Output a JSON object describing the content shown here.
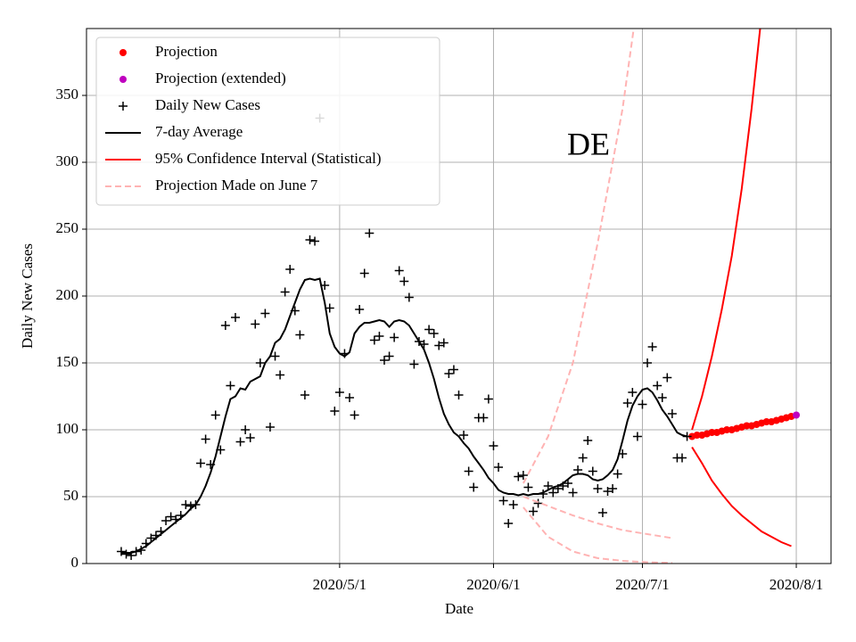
{
  "chart_data": {
    "type": "line",
    "annotation": "DE",
    "xlabel": "Date",
    "ylabel": "Daily New Cases",
    "xlim": [
      "2020-03-11",
      "2020-08-08"
    ],
    "xticks": [
      {
        "value": "2020-05-01",
        "label": "2020/5/1"
      },
      {
        "value": "2020-06-01",
        "label": "2020/6/1"
      },
      {
        "value": "2020-07-01",
        "label": "2020/7/1"
      },
      {
        "value": "2020-08-01",
        "label": "2020/8/1"
      }
    ],
    "ylim": [
      0,
      400
    ],
    "yticks": [
      0,
      50,
      100,
      150,
      200,
      250,
      300,
      350
    ],
    "grid": true,
    "legend": "upper left",
    "x": [
      "2020-03-18",
      "2020-03-19",
      "2020-03-20",
      "2020-03-21",
      "2020-03-22",
      "2020-03-23",
      "2020-03-24",
      "2020-03-25",
      "2020-03-26",
      "2020-03-27",
      "2020-03-28",
      "2020-03-29",
      "2020-03-30",
      "2020-03-31",
      "2020-04-01",
      "2020-04-02",
      "2020-04-03",
      "2020-04-04",
      "2020-04-05",
      "2020-04-06",
      "2020-04-07",
      "2020-04-08",
      "2020-04-09",
      "2020-04-10",
      "2020-04-11",
      "2020-04-12",
      "2020-04-13",
      "2020-04-14",
      "2020-04-15",
      "2020-04-16",
      "2020-04-17",
      "2020-04-18",
      "2020-04-19",
      "2020-04-20",
      "2020-04-21",
      "2020-04-22",
      "2020-04-23",
      "2020-04-24",
      "2020-04-25",
      "2020-04-26",
      "2020-04-27",
      "2020-04-28",
      "2020-04-29",
      "2020-04-30",
      "2020-05-01",
      "2020-05-02",
      "2020-05-03",
      "2020-05-04",
      "2020-05-05",
      "2020-05-06",
      "2020-05-07",
      "2020-05-08",
      "2020-05-09",
      "2020-05-10",
      "2020-05-11",
      "2020-05-12",
      "2020-05-13",
      "2020-05-14",
      "2020-05-15",
      "2020-05-16",
      "2020-05-17",
      "2020-05-18",
      "2020-05-19",
      "2020-05-20",
      "2020-05-21",
      "2020-05-22",
      "2020-05-23",
      "2020-05-24",
      "2020-05-25",
      "2020-05-26",
      "2020-05-27",
      "2020-05-28",
      "2020-05-29",
      "2020-05-30",
      "2020-05-31",
      "2020-06-01",
      "2020-06-02",
      "2020-06-03",
      "2020-06-04",
      "2020-06-05",
      "2020-06-06",
      "2020-06-07",
      "2020-06-08",
      "2020-06-09",
      "2020-06-10",
      "2020-06-11",
      "2020-06-12",
      "2020-06-13",
      "2020-06-14",
      "2020-06-15",
      "2020-06-16",
      "2020-06-17",
      "2020-06-18",
      "2020-06-19",
      "2020-06-20",
      "2020-06-21",
      "2020-06-22",
      "2020-06-23",
      "2020-06-24",
      "2020-06-25",
      "2020-06-26",
      "2020-06-27",
      "2020-06-28",
      "2020-06-29",
      "2020-06-30",
      "2020-07-01",
      "2020-07-02",
      "2020-07-03",
      "2020-07-04",
      "2020-07-05",
      "2020-07-06",
      "2020-07-07",
      "2020-07-08",
      "2020-07-09",
      "2020-07-10"
    ],
    "series": [
      {
        "name": "Projection",
        "color": "#ff0000",
        "marker": "dot",
        "x": [
          "2020-07-11",
          "2020-07-12",
          "2020-07-13",
          "2020-07-14",
          "2020-07-15",
          "2020-07-16",
          "2020-07-17",
          "2020-07-18",
          "2020-07-19",
          "2020-07-20",
          "2020-07-21",
          "2020-07-22",
          "2020-07-23",
          "2020-07-24",
          "2020-07-25",
          "2020-07-26",
          "2020-07-27",
          "2020-07-28",
          "2020-07-29",
          "2020-07-30",
          "2020-07-31"
        ],
        "values": [
          95,
          96,
          96,
          97,
          98,
          98,
          99,
          100,
          100,
          101,
          102,
          103,
          103,
          104,
          105,
          106,
          106,
          107,
          108,
          109,
          110
        ]
      },
      {
        "name": "Projection (extended)",
        "color": "#bf00bf",
        "marker": "dot",
        "x": [
          "2020-08-01"
        ],
        "values": [
          111
        ]
      },
      {
        "name": "Daily New Cases",
        "color": "#000000",
        "marker": "plus",
        "values": [
          9,
          7,
          6,
          9,
          10,
          15,
          19,
          21,
          24,
          32,
          35,
          33,
          36,
          44,
          43,
          44,
          75,
          93,
          74,
          111,
          85,
          178,
          133,
          184,
          91,
          100,
          94,
          179,
          150,
          187,
          102,
          155,
          141,
          203,
          220,
          189,
          171,
          126,
          242,
          241,
          333,
          208,
          191,
          114,
          128,
          157,
          124,
          111,
          190,
          217,
          247,
          167,
          170,
          152,
          155,
          169,
          219,
          211,
          199,
          149,
          166,
          164,
          175,
          172,
          163,
          165,
          142,
          145,
          126,
          96,
          69,
          57,
          109,
          109,
          123,
          88,
          72,
          47,
          30,
          44,
          65,
          66,
          57,
          39,
          45,
          52,
          58,
          53,
          56,
          58,
          60,
          53,
          70,
          79,
          92,
          69,
          56,
          38,
          54,
          56,
          67,
          82,
          120,
          128,
          95,
          119,
          150,
          162,
          133,
          124,
          139,
          112,
          79,
          79,
          95
        ]
      },
      {
        "name": "7-day Average",
        "color": "#000000",
        "style": "solid",
        "values": [
          8,
          8,
          8,
          9,
          11,
          13,
          16,
          19,
          22,
          25,
          28,
          31,
          34,
          37,
          41,
          44,
          50,
          58,
          68,
          80,
          95,
          110,
          123,
          125,
          131,
          130,
          136,
          138,
          140,
          150,
          155,
          165,
          168,
          175,
          185,
          195,
          205,
          212,
          213,
          212,
          213,
          195,
          172,
          162,
          157,
          155,
          158,
          172,
          177,
          180,
          180,
          181,
          182,
          181,
          177,
          181,
          182,
          181,
          178,
          172,
          166,
          160,
          150,
          138,
          124,
          112,
          104,
          98,
          95,
          90,
          86,
          80,
          75,
          70,
          64,
          60,
          55,
          53,
          52,
          52,
          51,
          52,
          51,
          52,
          52,
          53,
          55,
          57,
          58,
          60,
          63,
          66,
          67,
          67,
          66,
          63,
          62,
          63,
          66,
          70,
          78,
          92,
          107,
          118,
          125,
          130,
          131,
          128,
          122,
          115,
          110,
          104,
          98,
          96,
          95
        ]
      },
      {
        "name": "95% Confidence Interval (Statistical)",
        "color": "#ff0000",
        "style": "solid",
        "lines": [
          {
            "x": [
              "2020-07-11",
              "2020-07-13",
              "2020-07-15",
              "2020-07-17",
              "2020-07-19",
              "2020-07-21",
              "2020-07-23",
              "2020-07-25"
            ],
            "values": [
              100,
              125,
              155,
              190,
              230,
              280,
              340,
              410
            ]
          },
          {
            "x": [
              "2020-07-11",
              "2020-07-13",
              "2020-07-15",
              "2020-07-17",
              "2020-07-19",
              "2020-07-21",
              "2020-07-23",
              "2020-07-25",
              "2020-07-27",
              "2020-07-29",
              "2020-07-31"
            ],
            "values": [
              87,
              75,
              62,
              52,
              43,
              36,
              30,
              24,
              20,
              16,
              13
            ]
          }
        ]
      },
      {
        "name": "Projection Made on June 7",
        "color": "#ffb3b3",
        "style": "dashed",
        "lines": [
          {
            "x": [
              "2020-06-07",
              "2020-06-12",
              "2020-06-17",
              "2020-06-22",
              "2020-06-27",
              "2020-07-02",
              "2020-07-07"
            ],
            "values": [
              50,
              43,
              36,
              30,
              25,
              22,
              19
            ]
          },
          {
            "x": [
              "2020-06-07",
              "2020-06-12",
              "2020-06-17",
              "2020-06-22",
              "2020-06-27",
              "2020-06-30"
            ],
            "values": [
              60,
              95,
              150,
              240,
              340,
              420
            ]
          },
          {
            "x": [
              "2020-06-07",
              "2020-06-12",
              "2020-06-17",
              "2020-06-22",
              "2020-06-27",
              "2020-07-02",
              "2020-07-07"
            ],
            "values": [
              42,
              20,
              9,
              4,
              2,
              1,
              0.5
            ]
          }
        ]
      }
    ]
  }
}
